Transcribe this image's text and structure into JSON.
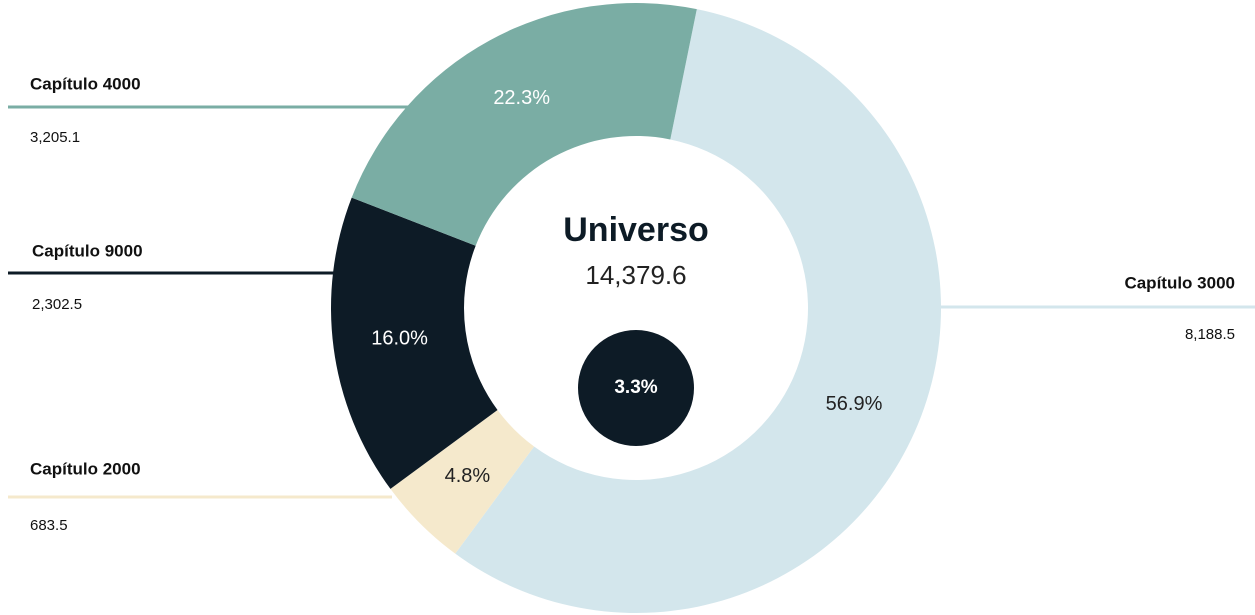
{
  "chart_data": {
    "type": "donut",
    "center_label": "Universo",
    "total": 14379.6,
    "total_label": "14,379.6",
    "inner_value": 3.3,
    "inner_label": "3.3%",
    "inner_color": "#0d1b26",
    "series": [
      {
        "name": "Capítulo 3000",
        "color": "#d3e6ec"
      },
      {
        "name": "Capítulo 2000",
        "color": "#f5e9cc"
      },
      {
        "name": "Capítulo 9000",
        "color": "#0d1b26"
      },
      {
        "name": "Capítulo 4000",
        "color": "#7aada4"
      }
    ],
    "values": [
      56.9,
      4.8,
      16.0,
      22.3
    ],
    "value_labels": [
      "56.9%",
      "4.8%",
      "16.0%",
      "22.3%"
    ],
    "amounts": [
      8188.5,
      683.5,
      2302.5,
      3205.1
    ],
    "amount_labels": [
      "8,188.5",
      "683.5",
      "2,302.5",
      "3,205.1"
    ]
  }
}
